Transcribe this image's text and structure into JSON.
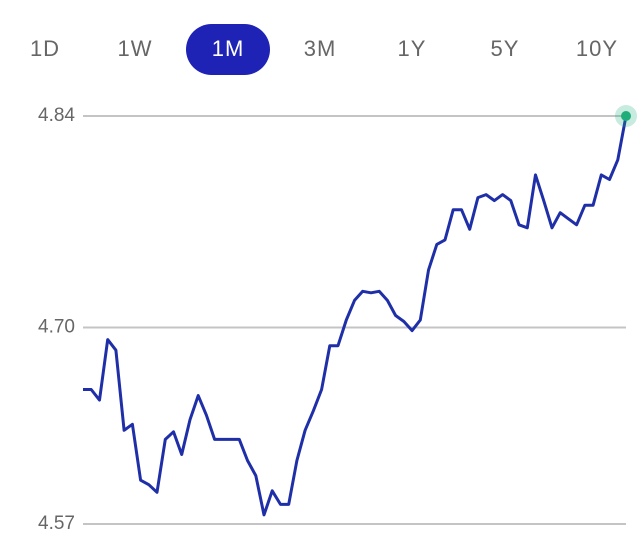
{
  "tabs": [
    "1D",
    "1W",
    "1M",
    "3M",
    "1Y",
    "5Y",
    "10Y"
  ],
  "active_tab": 2,
  "chart_data": {
    "type": "line",
    "ylim": [
      4.57,
      4.84
    ],
    "yticks": [
      4.84,
      {
        "value": 4.7,
        "label": "4.70"
      },
      4.57
    ],
    "grid": true,
    "series": [
      {
        "color": "#1f2fa8",
        "end_marker_color": "#1fae7a",
        "values": [
          4.659,
          4.659,
          4.652,
          4.692,
          4.685,
          4.632,
          4.636,
          4.599,
          4.596,
          4.591,
          4.626,
          4.631,
          4.616,
          4.639,
          4.655,
          4.642,
          4.626,
          4.626,
          4.626,
          4.626,
          4.612,
          4.602,
          4.576,
          4.592,
          4.583,
          4.583,
          4.612,
          4.632,
          4.645,
          4.659,
          4.688,
          4.688,
          4.705,
          4.718,
          4.724,
          4.723,
          4.724,
          4.718,
          4.708,
          4.704,
          4.698,
          4.705,
          4.738,
          4.755,
          4.758,
          4.778,
          4.778,
          4.765,
          4.786,
          4.788,
          4.784,
          4.788,
          4.784,
          4.768,
          4.766,
          4.801,
          4.784,
          4.766,
          4.776,
          4.772,
          4.768,
          4.781,
          4.781,
          4.801,
          4.798,
          4.811,
          4.84
        ]
      }
    ]
  }
}
